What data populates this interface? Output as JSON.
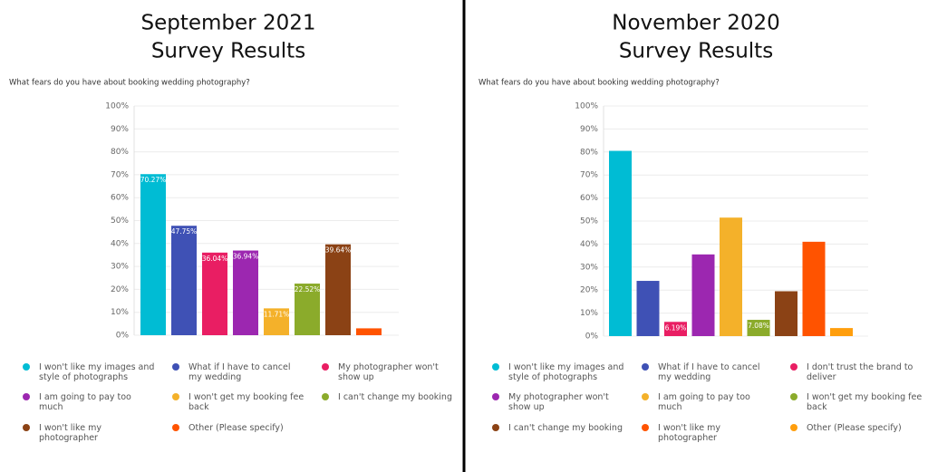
{
  "chart_data": [
    {
      "type": "bar",
      "title": "September 2021",
      "subtitle": "Survey Results",
      "question": "What fears do you have about booking wedding photography?",
      "categories": [
        "I won't like my images and style of photographs",
        "What if I have to cancel my wedding",
        "My photographer won't show up",
        "I am going to pay too much",
        "I won't get my booking fee back",
        "I can't change my booking",
        "I won't like my photographer",
        "Other (Please specify)"
      ],
      "values": [
        70.27,
        47.75,
        36.04,
        36.94,
        11.71,
        22.52,
        39.64,
        3
      ],
      "value_labels": [
        "70.27%",
        "47.75%",
        "36.04%",
        "36.94%",
        "11.71%",
        "22.52%",
        "39.64%",
        null
      ],
      "colors": [
        "#00bcd4",
        "#3f51b5",
        "#e91e63",
        "#9c27b0",
        "#f4b12a",
        "#8bab2b",
        "#8b4215",
        "#ff5300"
      ],
      "ylim": [
        0,
        100
      ],
      "yticks": [
        {
          "value": 0,
          "label": "0%"
        },
        {
          "value": 10,
          "label": "10%"
        },
        {
          "value": 20,
          "label": "20%"
        },
        {
          "value": 30,
          "label": "30%"
        },
        {
          "value": 40,
          "label": "40%"
        },
        {
          "value": 50,
          "label": "50%"
        },
        {
          "value": 60,
          "label": "60%"
        },
        {
          "value": 70,
          "label": "70%"
        },
        {
          "value": 80,
          "label": "80%"
        },
        {
          "value": 90,
          "label": "90%"
        },
        {
          "value": 100,
          "label": "100%"
        }
      ],
      "grid": true
    },
    {
      "type": "bar",
      "title": "November 2020",
      "subtitle": "Survey Results",
      "question": "What fears do you have about booking wedding photography?",
      "categories": [
        "I won't like my images and style of photographs",
        "What if I have to cancel my wedding",
        "I don't trust the brand to deliver",
        "My photographer won't show up",
        "I am going to pay too much",
        "I won't get my booking fee back",
        "I can't change my booking",
        "I won't like my photographer",
        "Other (Please specify)"
      ],
      "values": [
        80.5,
        24,
        6.19,
        35.5,
        51.5,
        7.08,
        19.5,
        41,
        3.5
      ],
      "value_labels": [
        null,
        null,
        "6.19%",
        null,
        null,
        "7.08%",
        null,
        null,
        null
      ],
      "colors": [
        "#00bcd4",
        "#3f51b5",
        "#e91e63",
        "#9c27b0",
        "#f4b12a",
        "#8bab2b",
        "#8b4215",
        "#ff5300",
        "#ff9e0d"
      ],
      "ylim": [
        0,
        100
      ],
      "yticks": [
        {
          "value": 0,
          "label": "0%"
        },
        {
          "value": 10,
          "label": "10%"
        },
        {
          "value": 20,
          "label": "20%"
        },
        {
          "value": 30,
          "label": "30%"
        },
        {
          "value": 40,
          "label": "40%"
        },
        {
          "value": 50,
          "label": "50%"
        },
        {
          "value": 60,
          "label": "60%"
        },
        {
          "value": 70,
          "label": "70%"
        },
        {
          "value": 80,
          "label": "80%"
        },
        {
          "value": 90,
          "label": "90%"
        },
        {
          "value": 100,
          "label": "100%"
        }
      ],
      "grid": true
    }
  ]
}
